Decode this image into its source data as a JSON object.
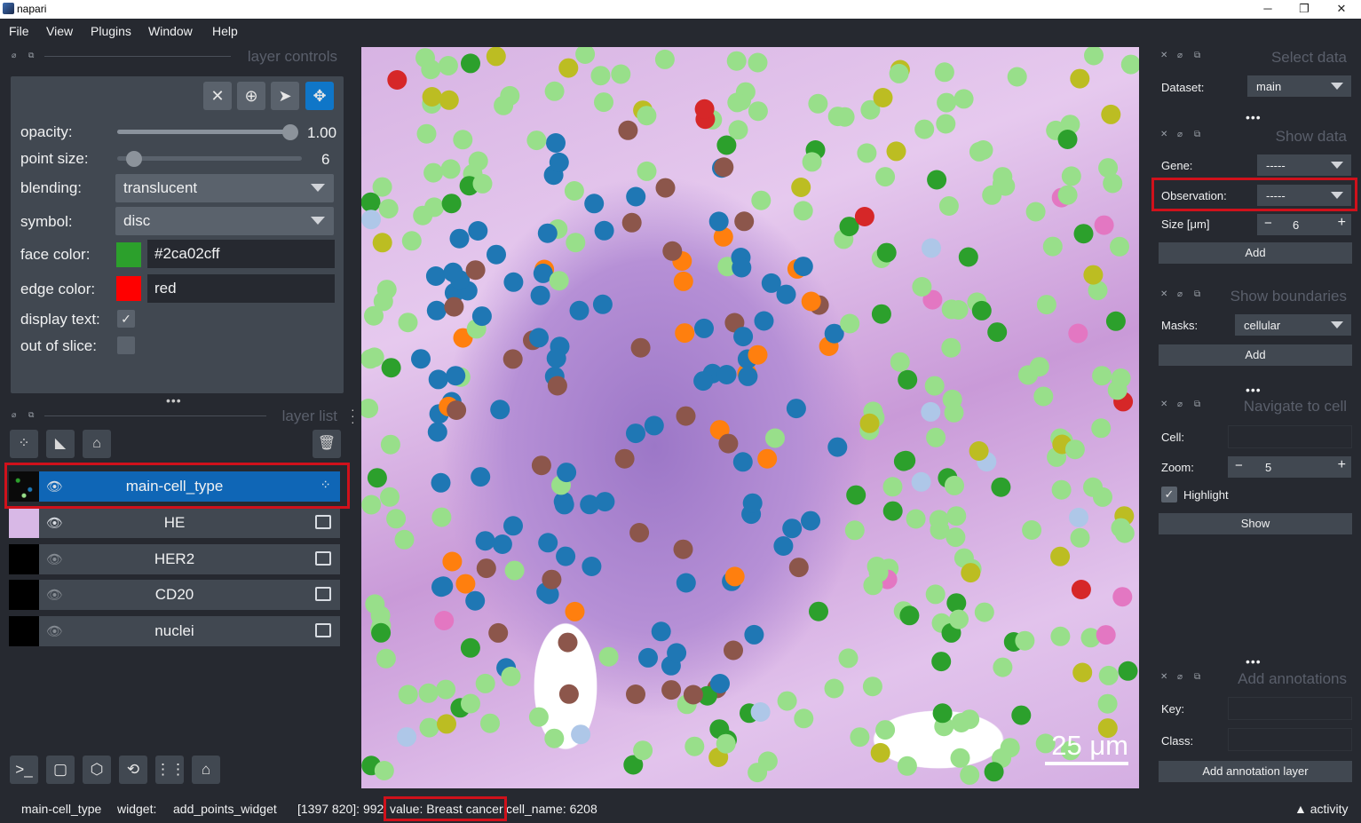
{
  "window": {
    "title": "napari",
    "minimize": "─",
    "restore": "❐",
    "close": "✕"
  },
  "menu": [
    "File",
    "View",
    "Plugins",
    "Window",
    "Help"
  ],
  "layer_controls": {
    "header": "layer controls",
    "opacity_label": "opacity:",
    "opacity_value": "1.00",
    "opacity": 1.0,
    "point_size_label": "point size:",
    "point_size_value": "6",
    "blending_label": "blending:",
    "blending_value": "translucent",
    "symbol_label": "symbol:",
    "symbol_value": "disc",
    "face_color_label": "face color:",
    "face_color_value": "#2ca02cff",
    "face_color_swatch": "#2ca02c",
    "edge_color_label": "edge color:",
    "edge_color_value": "red",
    "edge_color_swatch": "#ff0000",
    "display_text_label": "display text:",
    "display_text_checked": true,
    "out_of_slice_label": "out of slice:",
    "out_of_slice_checked": false
  },
  "layer_list": {
    "header": "layer list",
    "layers": [
      {
        "name": "main-cell_type",
        "visible": true,
        "selected": true,
        "type": "points"
      },
      {
        "name": "HE",
        "visible": true,
        "selected": false,
        "type": "image"
      },
      {
        "name": "HER2",
        "visible": false,
        "selected": false,
        "type": "image"
      },
      {
        "name": "CD20",
        "visible": false,
        "selected": false,
        "type": "image"
      },
      {
        "name": "nuclei",
        "visible": false,
        "selected": false,
        "type": "image"
      }
    ]
  },
  "canvas": {
    "scale_bar": "25 μm"
  },
  "right_panel": {
    "select_data": {
      "title": "Select data",
      "dataset_label": "Dataset:",
      "dataset_value": "main"
    },
    "show_data": {
      "title": "Show data",
      "gene_label": "Gene:",
      "gene_value": "-----",
      "observation_label": "Observation:",
      "observation_value": "-----",
      "size_label": "Size [μm]",
      "size_value": "6",
      "add_button": "Add"
    },
    "show_boundaries": {
      "title": "Show boundaries",
      "masks_label": "Masks:",
      "masks_value": "cellular",
      "add_button": "Add"
    },
    "navigate": {
      "title": "Navigate to cell",
      "cell_label": "Cell:",
      "zoom_label": "Zoom:",
      "zoom_value": "5",
      "highlight_label": "Highlight",
      "highlight_checked": true,
      "show_button": "Show"
    },
    "annotations": {
      "title": "Add annotations",
      "key_label": "Key:",
      "class_label": "Class:",
      "add_button": "Add annotation layer"
    }
  },
  "status_bar": {
    "layer": "main-cell_type",
    "widget_label": "widget:",
    "widget_value": "add_points_widget",
    "coords": "[1397 820]: 992;",
    "value": "value: Breast cancer;",
    "cell_name": "cell_name: 6208",
    "activity": "▲ activity"
  },
  "colors": {
    "green_light": "#98df8a",
    "green_dark": "#2ca02c",
    "blue": "#1f77b4",
    "orange": "#ff7f0e",
    "brown": "#8c564b",
    "red": "#d62728",
    "olive": "#bcbd22",
    "pink": "#e377c2",
    "cyan": "#17becf",
    "light_blue": "#aec7e8",
    "salmon": "#ff9896",
    "peach": "#ffbb78",
    "lavender": "#c5b0d5",
    "highlight_outline": "#d0111b"
  }
}
